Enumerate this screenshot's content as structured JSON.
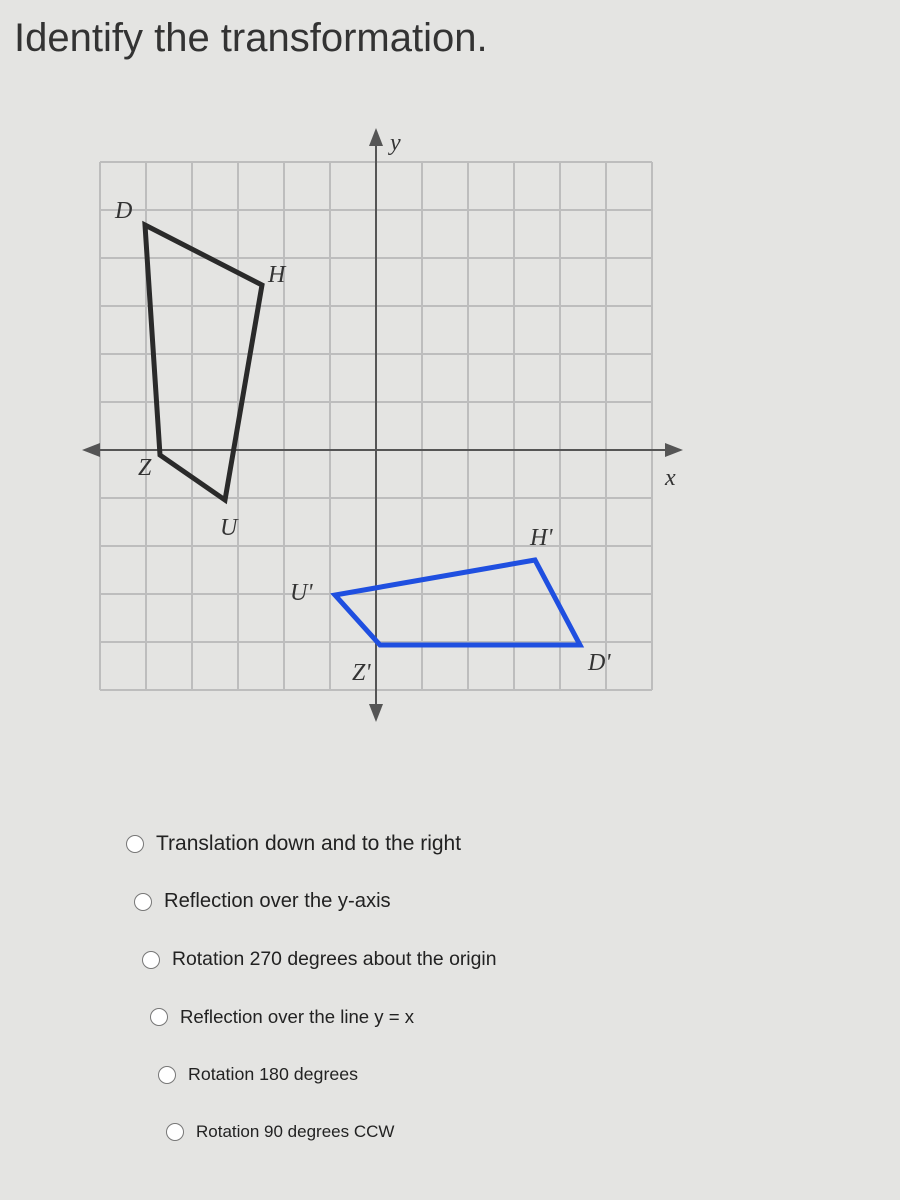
{
  "question": {
    "title": "Identify the transformation."
  },
  "graph": {
    "axis_labels": {
      "y": "y",
      "x": "x"
    },
    "original": {
      "D": "D",
      "H": "H",
      "Z": "Z",
      "U": "U"
    },
    "image": {
      "H": "H'",
      "U": "U'",
      "Z": "Z'",
      "D": "D'"
    }
  },
  "options": [
    "Translation down and to the right",
    "Reflection over the y-axis",
    "Rotation 270 degrees about the origin",
    "Reflection over the line y = x",
    "Rotation 180 degrees",
    "Rotation 90 degrees CCW"
  ]
}
